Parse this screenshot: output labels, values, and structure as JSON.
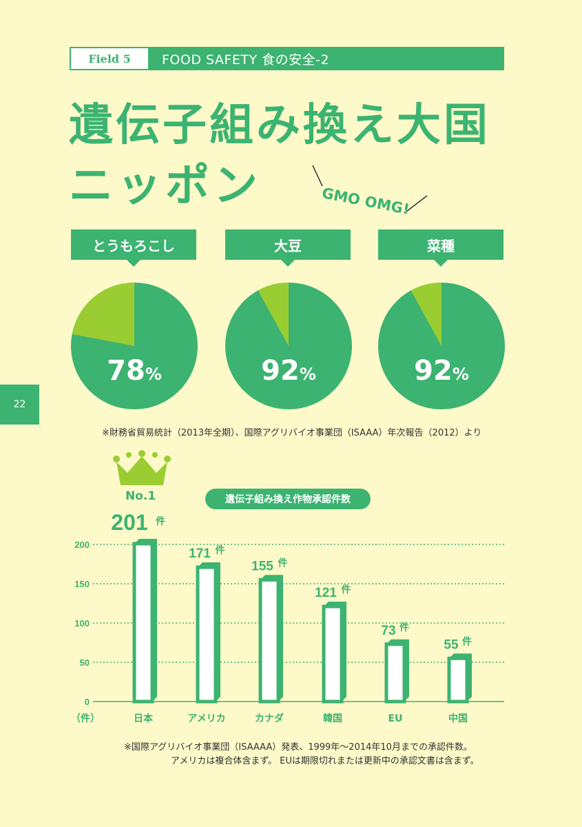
{
  "header": {
    "field_label": "Field 5",
    "section_title": "FOOD SAFETY  食の安全-2"
  },
  "headline": {
    "line1": "遺伝子組み換え大国",
    "line2": "ニッポン",
    "tagline": "GMO OMG!"
  },
  "page_number": "22",
  "colors": {
    "accent": "#3cb371",
    "light_accent": "#9acd32",
    "background": "#fdf9c9"
  },
  "pies": [
    {
      "label": "とうもろこし",
      "value": 78,
      "unit": "%"
    },
    {
      "label": "大豆",
      "value": 92,
      "unit": "%"
    },
    {
      "label": "菜種",
      "value": 92,
      "unit": "%"
    }
  ],
  "pie_source": "※財務省貿易統計（2013年全期）、国際アグリバイオ事業団（ISAAA）年次報告（2012）より",
  "bar_extra": {
    "rank_label": "No.1",
    "crown_icon": "crown-icon"
  },
  "chart_data": {
    "type": "bar",
    "title": "遺伝子組み換え作物承認件数",
    "categories": [
      "日本",
      "アメリカ",
      "カナダ",
      "韓国",
      "EU",
      "中国"
    ],
    "values": [
      201,
      171,
      155,
      121,
      73,
      55
    ],
    "value_unit": "件",
    "ylabel": "（件）",
    "ylim": [
      0,
      200
    ],
    "yticks": [
      0,
      50,
      100,
      150,
      200
    ],
    "grid": true
  },
  "footnote": {
    "line1": "※国際アグリバイオ事業団（ISAAAA）発表、1999年〜2014年10月までの承認件数。",
    "line2": "アメリカは複合体含まず。 EUは期限切れまたは更新中の承認文書は含まず。"
  }
}
